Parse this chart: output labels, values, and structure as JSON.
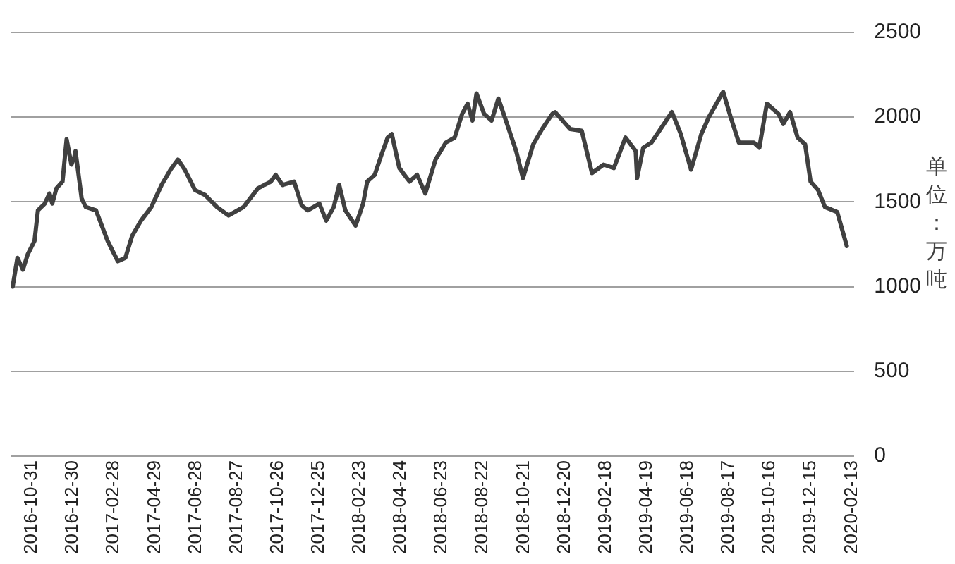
{
  "chart_data": {
    "type": "line",
    "ylabel": "单位：万吨",
    "x": [
      "2016-10-03",
      "2016-10-10",
      "2016-10-18",
      "2016-10-25",
      "2016-11-04",
      "2016-11-09",
      "2016-11-19",
      "2016-11-26",
      "2016-11-30",
      "2016-12-06",
      "2016-12-15",
      "2016-12-21",
      "2016-12-28",
      "2017-01-01",
      "2017-01-03",
      "2017-01-12",
      "2017-01-18",
      "2017-02-02",
      "2017-02-19",
      "2017-03-06",
      "2017-03-17",
      "2017-03-27",
      "2017-04-09",
      "2017-04-24",
      "2017-05-09",
      "2017-05-22",
      "2017-06-02",
      "2017-06-12",
      "2017-06-27",
      "2017-07-12",
      "2017-07-29",
      "2017-08-15",
      "2017-09-06",
      "2017-09-27",
      "2017-10-16",
      "2017-10-23",
      "2017-11-02",
      "2017-11-19",
      "2017-11-30",
      "2017-12-09",
      "2017-12-26",
      "2018-01-05",
      "2018-01-16",
      "2018-01-24",
      "2018-02-02",
      "2018-02-17",
      "2018-02-28",
      "2018-03-06",
      "2018-03-17",
      "2018-03-27",
      "2018-04-05",
      "2018-04-11",
      "2018-04-22",
      "2018-05-07",
      "2018-05-18",
      "2018-05-30",
      "2018-06-14",
      "2018-06-29",
      "2018-07-12",
      "2018-07-23",
      "2018-07-31",
      "2018-08-07",
      "2018-08-13",
      "2018-08-24",
      "2018-09-04",
      "2018-09-14",
      "2018-09-25",
      "2018-10-10",
      "2018-10-20",
      "2018-11-04",
      "2018-11-17",
      "2018-12-02",
      "2018-12-06",
      "2018-12-28",
      "2019-01-14",
      "2019-01-29",
      "2019-02-15",
      "2019-03-02",
      "2019-03-19",
      "2019-04-03",
      "2019-04-05",
      "2019-04-14",
      "2019-04-26",
      "2019-05-26",
      "2019-06-08",
      "2019-06-23",
      "2019-07-08",
      "2019-07-19",
      "2019-08-09",
      "2019-08-20",
      "2019-09-01",
      "2019-09-23",
      "2019-10-01",
      "2019-10-12",
      "2019-10-29",
      "2019-11-05",
      "2019-11-15",
      "2019-11-26",
      "2019-12-07",
      "2019-12-15",
      "2019-12-26",
      "2020-01-05",
      "2020-01-23",
      "2020-02-06"
    ],
    "series": [
      {
        "color": "#404040",
        "values": [
          1000,
          1170,
          1100,
          1190,
          1270,
          1450,
          1490,
          1550,
          1490,
          1580,
          1620,
          1870,
          1720,
          1760,
          1800,
          1520,
          1470,
          1450,
          1270,
          1150,
          1170,
          1300,
          1390,
          1470,
          1600,
          1690,
          1750,
          1690,
          1570,
          1540,
          1470,
          1420,
          1470,
          1580,
          1620,
          1660,
          1600,
          1620,
          1480,
          1450,
          1490,
          1390,
          1470,
          1600,
          1450,
          1360,
          1490,
          1620,
          1660,
          1780,
          1880,
          1900,
          1700,
          1620,
          1660,
          1550,
          1750,
          1850,
          1880,
          2020,
          2080,
          1980,
          2140,
          2020,
          1980,
          2110,
          1980,
          1800,
          1640,
          1840,
          1930,
          2020,
          2030,
          1930,
          1920,
          1670,
          1720,
          1700,
          1880,
          1800,
          1640,
          1820,
          1850,
          2030,
          1900,
          1690,
          1900,
          2000,
          2150,
          2000,
          1850,
          1850,
          1820,
          2080,
          2020,
          1960,
          2030,
          1880,
          1840,
          1620,
          1570,
          1470,
          1440,
          1240
        ]
      }
    ],
    "xlim": [
      "2016-10-01",
      "2020-02-17"
    ],
    "xticks": [
      "2016-10-31",
      "2016-12-30",
      "2017-02-28",
      "2017-04-29",
      "2017-06-28",
      "2017-08-27",
      "2017-10-26",
      "2017-12-25",
      "2018-02-23",
      "2018-04-24",
      "2018-06-23",
      "2018-08-22",
      "2018-10-21",
      "2018-12-20",
      "2019-02-18",
      "2019-04-19",
      "2019-06-18",
      "2019-08-17",
      "2019-10-16",
      "2019-12-15",
      "2020-02-13"
    ],
    "ylim": [
      0,
      2500
    ],
    "yticks": [
      0,
      500,
      1000,
      1500,
      2000,
      2500
    ],
    "grid": "y",
    "legend": false,
    "marker": "none",
    "line_style": "solid"
  }
}
